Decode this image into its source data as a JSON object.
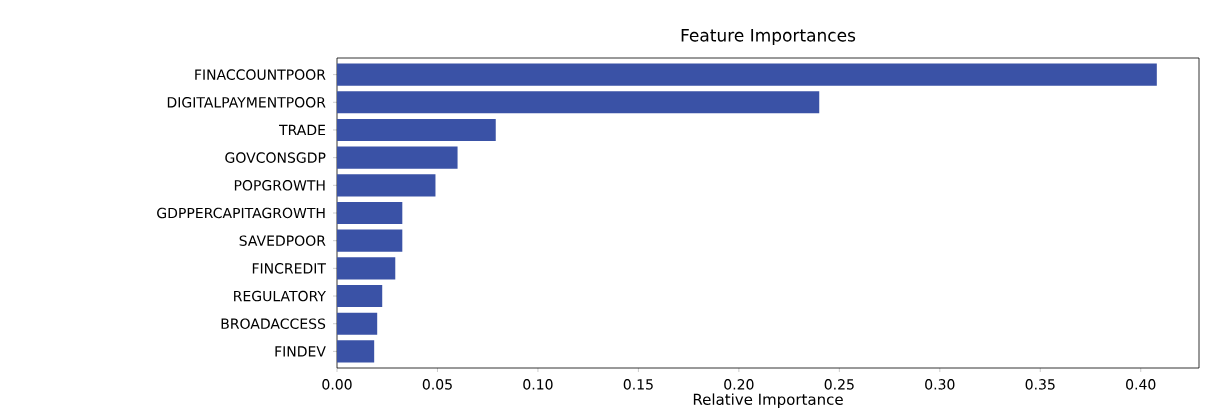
{
  "chart_data": {
    "type": "bar",
    "orientation": "horizontal",
    "title": "Feature Importances",
    "xlabel": "Relative Importance",
    "categories": [
      "FINACCOUNTPOOR",
      "DIGITALPAYMENTPOOR",
      "TRADE",
      "GOVCONSGDP",
      "POPGROWTH",
      "GDPPERCAPITAGROWTH",
      "SAVEDPOOR",
      "FINCREDIT",
      "REGULATORY",
      "BROADACCESS",
      "FINDEV"
    ],
    "values": [
      0.408,
      0.24,
      0.079,
      0.06,
      0.049,
      0.0325,
      0.0325,
      0.029,
      0.0225,
      0.02,
      0.0185
    ],
    "color": "#3a52a6",
    "xlim": [
      0,
      0.429
    ],
    "xticks": [
      {
        "value": 0,
        "label": "0.00"
      },
      {
        "value": 0.05,
        "label": "0.05"
      },
      {
        "value": 0.1,
        "label": "0.10"
      },
      {
        "value": 0.15,
        "label": "0.15"
      },
      {
        "value": 0.2,
        "label": "0.20"
      },
      {
        "value": 0.25,
        "label": "0.25"
      },
      {
        "value": 0.3,
        "label": "0.30"
      },
      {
        "value": 0.35,
        "label": "0.35"
      },
      {
        "value": 0.4,
        "label": "0.40"
      }
    ],
    "grid": false
  }
}
